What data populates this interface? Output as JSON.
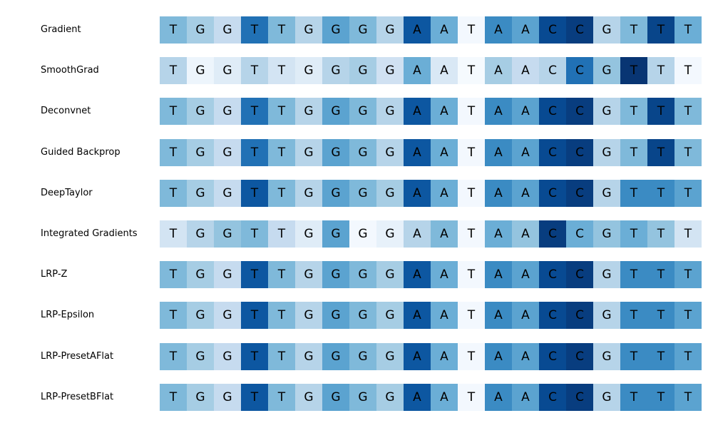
{
  "chart_data": {
    "type": "heatmap",
    "colormap": "Blues",
    "sequence": [
      "T",
      "G",
      "G",
      "T",
      "T",
      "G",
      "G",
      "G",
      "G",
      "A",
      "A",
      "T",
      "A",
      "A",
      "C",
      "C",
      "G",
      "T",
      "T",
      "T"
    ],
    "rows": [
      {
        "method": "Gradient",
        "values": [
          0.45,
          0.35,
          0.25,
          0.75,
          0.45,
          0.3,
          0.55,
          0.45,
          0.3,
          0.85,
          0.5,
          0.02,
          0.65,
          0.55,
          0.9,
          0.95,
          0.3,
          0.45,
          0.92,
          0.5
        ]
      },
      {
        "method": "SmoothGrad",
        "values": [
          0.3,
          0.05,
          0.12,
          0.3,
          0.18,
          0.12,
          0.3,
          0.35,
          0.2,
          0.5,
          0.15,
          0.01,
          0.35,
          0.25,
          0.3,
          0.75,
          0.4,
          0.98,
          0.3,
          0.02
        ]
      },
      {
        "method": "Deconvnet",
        "values": [
          0.45,
          0.35,
          0.25,
          0.75,
          0.45,
          0.3,
          0.55,
          0.45,
          0.3,
          0.85,
          0.5,
          0.02,
          0.65,
          0.55,
          0.9,
          0.95,
          0.3,
          0.45,
          0.92,
          0.45
        ]
      },
      {
        "method": "Guided Backprop",
        "values": [
          0.45,
          0.35,
          0.25,
          0.75,
          0.45,
          0.3,
          0.55,
          0.45,
          0.3,
          0.85,
          0.5,
          0.02,
          0.65,
          0.55,
          0.9,
          0.95,
          0.3,
          0.45,
          0.92,
          0.45
        ]
      },
      {
        "method": "DeepTaylor",
        "values": [
          0.45,
          0.35,
          0.25,
          0.85,
          0.45,
          0.3,
          0.55,
          0.45,
          0.35,
          0.85,
          0.5,
          0.02,
          0.65,
          0.55,
          0.9,
          0.95,
          0.3,
          0.65,
          0.65,
          0.55
        ]
      },
      {
        "method": "Integrated Gradients",
        "values": [
          0.18,
          0.3,
          0.4,
          0.45,
          0.25,
          0.12,
          0.55,
          0.02,
          0.08,
          0.3,
          0.45,
          0.02,
          0.5,
          0.4,
          0.95,
          0.5,
          0.4,
          0.5,
          0.4,
          0.18
        ]
      },
      {
        "method": "LRP-Z",
        "values": [
          0.45,
          0.35,
          0.25,
          0.85,
          0.45,
          0.3,
          0.55,
          0.45,
          0.35,
          0.85,
          0.5,
          0.02,
          0.65,
          0.55,
          0.9,
          0.95,
          0.3,
          0.65,
          0.65,
          0.55
        ]
      },
      {
        "method": "LRP-Epsilon",
        "values": [
          0.45,
          0.35,
          0.25,
          0.85,
          0.45,
          0.3,
          0.55,
          0.45,
          0.35,
          0.85,
          0.5,
          0.02,
          0.65,
          0.55,
          0.9,
          0.95,
          0.3,
          0.65,
          0.65,
          0.55
        ]
      },
      {
        "method": "LRP-PresetAFlat",
        "values": [
          0.45,
          0.35,
          0.25,
          0.85,
          0.45,
          0.3,
          0.55,
          0.45,
          0.35,
          0.85,
          0.5,
          0.02,
          0.65,
          0.55,
          0.9,
          0.95,
          0.3,
          0.65,
          0.65,
          0.55
        ]
      },
      {
        "method": "LRP-PresetBFlat",
        "values": [
          0.45,
          0.35,
          0.25,
          0.85,
          0.45,
          0.3,
          0.55,
          0.45,
          0.35,
          0.85,
          0.5,
          0.02,
          0.65,
          0.55,
          0.9,
          0.95,
          0.3,
          0.65,
          0.65,
          0.55
        ]
      }
    ]
  }
}
